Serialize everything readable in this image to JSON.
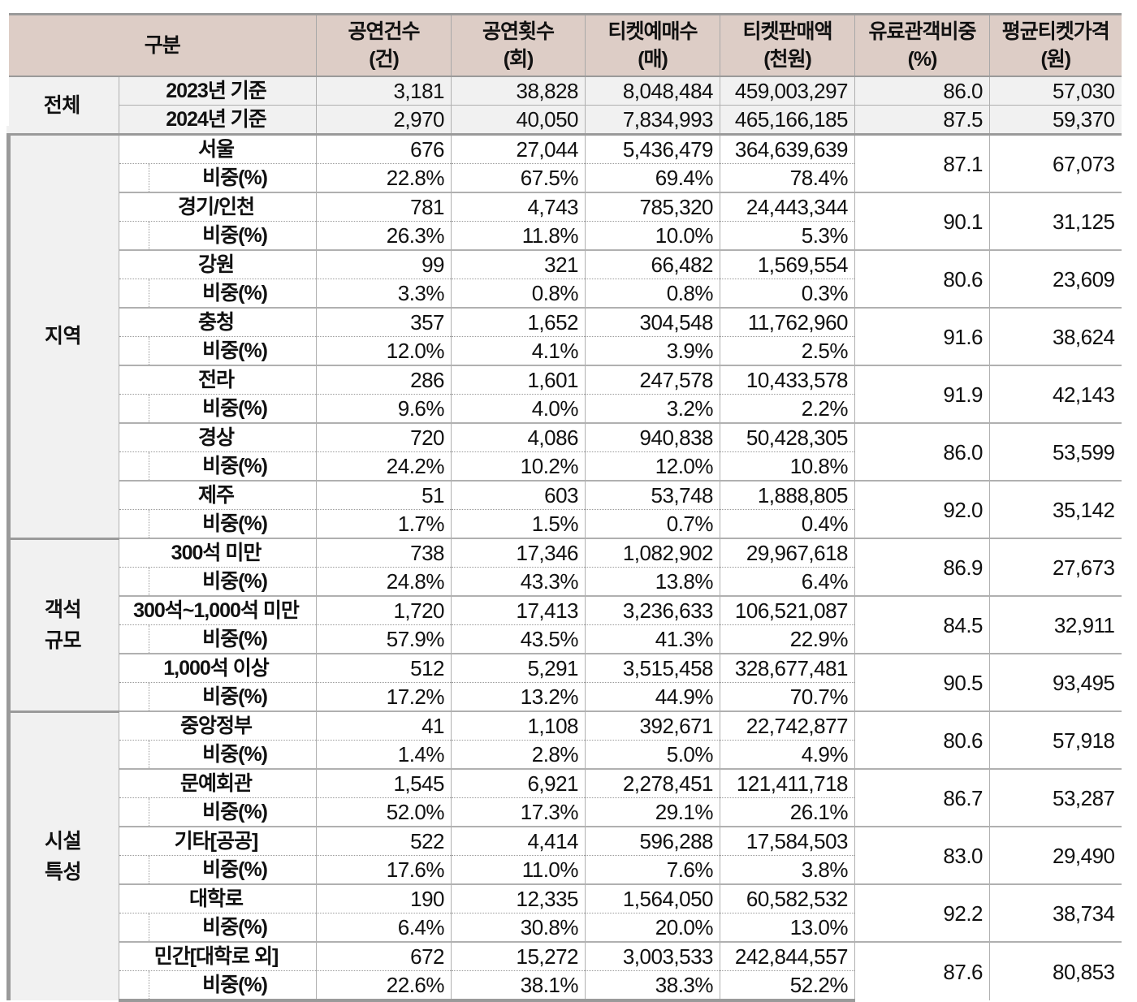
{
  "header": {
    "category": "구분",
    "columns": [
      {
        "title": "공연건수",
        "unit": "(건)"
      },
      {
        "title": "공연횟수",
        "unit": "(회)"
      },
      {
        "title": "티켓예매수",
        "unit": "(매)"
      },
      {
        "title": "티켓판매액",
        "unit": "(천원)"
      },
      {
        "title": "유료관객비중",
        "unit": "(%)"
      },
      {
        "title": "평균티켓가격",
        "unit": "(원)"
      }
    ]
  },
  "total": {
    "group": "전체",
    "rows": [
      {
        "label": "2023년 기준",
        "values": [
          "3,181",
          "38,828",
          "8,048,484",
          "459,003,297",
          "86.0",
          "57,030"
        ]
      },
      {
        "label": "2024년 기준",
        "values": [
          "2,970",
          "40,050",
          "7,834,993",
          "465,166,185",
          "87.5",
          "59,370"
        ]
      }
    ]
  },
  "share_label": "비중(%)",
  "groups": [
    {
      "name": "지역",
      "name_lines": [
        "지역"
      ],
      "items": [
        {
          "label": "서울",
          "values": [
            "676",
            "27,044",
            "5,436,479",
            "364,639,639"
          ],
          "shares": [
            "22.8%",
            "67.5%",
            "69.4%",
            "78.4%"
          ],
          "paid_ratio": "87.1",
          "avg_price": "67,073"
        },
        {
          "label": "경기/인천",
          "values": [
            "781",
            "4,743",
            "785,320",
            "24,443,344"
          ],
          "shares": [
            "26.3%",
            "11.8%",
            "10.0%",
            "5.3%"
          ],
          "paid_ratio": "90.1",
          "avg_price": "31,125"
        },
        {
          "label": "강원",
          "values": [
            "99",
            "321",
            "66,482",
            "1,569,554"
          ],
          "shares": [
            "3.3%",
            "0.8%",
            "0.8%",
            "0.3%"
          ],
          "paid_ratio": "80.6",
          "avg_price": "23,609"
        },
        {
          "label": "충청",
          "values": [
            "357",
            "1,652",
            "304,548",
            "11,762,960"
          ],
          "shares": [
            "12.0%",
            "4.1%",
            "3.9%",
            "2.5%"
          ],
          "paid_ratio": "91.6",
          "avg_price": "38,624"
        },
        {
          "label": "전라",
          "values": [
            "286",
            "1,601",
            "247,578",
            "10,433,578"
          ],
          "shares": [
            "9.6%",
            "4.0%",
            "3.2%",
            "2.2%"
          ],
          "paid_ratio": "91.9",
          "avg_price": "42,143"
        },
        {
          "label": "경상",
          "values": [
            "720",
            "4,086",
            "940,838",
            "50,428,305"
          ],
          "shares": [
            "24.2%",
            "10.2%",
            "12.0%",
            "10.8%"
          ],
          "paid_ratio": "86.0",
          "avg_price": "53,599"
        },
        {
          "label": "제주",
          "values": [
            "51",
            "603",
            "53,748",
            "1,888,805"
          ],
          "shares": [
            "1.7%",
            "1.5%",
            "0.7%",
            "0.4%"
          ],
          "paid_ratio": "92.0",
          "avg_price": "35,142"
        }
      ]
    },
    {
      "name": "객석 규모",
      "name_lines": [
        "객석",
        "규모"
      ],
      "items": [
        {
          "label": "300석 미만",
          "values": [
            "738",
            "17,346",
            "1,082,902",
            "29,967,618"
          ],
          "shares": [
            "24.8%",
            "43.3%",
            "13.8%",
            "6.4%"
          ],
          "paid_ratio": "86.9",
          "avg_price": "27,673"
        },
        {
          "label": "300석~1,000석 미만",
          "values": [
            "1,720",
            "17,413",
            "3,236,633",
            "106,521,087"
          ],
          "shares": [
            "57.9%",
            "43.5%",
            "41.3%",
            "22.9%"
          ],
          "paid_ratio": "84.5",
          "avg_price": "32,911"
        },
        {
          "label": "1,000석 이상",
          "values": [
            "512",
            "5,291",
            "3,515,458",
            "328,677,481"
          ],
          "shares": [
            "17.2%",
            "13.2%",
            "44.9%",
            "70.7%"
          ],
          "paid_ratio": "90.5",
          "avg_price": "93,495"
        }
      ]
    },
    {
      "name": "시설 특성",
      "name_lines": [
        "시설",
        "특성"
      ],
      "items": [
        {
          "label": "중앙정부",
          "values": [
            "41",
            "1,108",
            "392,671",
            "22,742,877"
          ],
          "shares": [
            "1.4%",
            "2.8%",
            "5.0%",
            "4.9%"
          ],
          "paid_ratio": "80.6",
          "avg_price": "57,918"
        },
        {
          "label": "문예회관",
          "values": [
            "1,545",
            "6,921",
            "2,278,451",
            "121,411,718"
          ],
          "shares": [
            "52.0%",
            "17.3%",
            "29.1%",
            "26.1%"
          ],
          "paid_ratio": "86.7",
          "avg_price": "53,287"
        },
        {
          "label": "기타[공공]",
          "values": [
            "522",
            "4,414",
            "596,288",
            "17,584,503"
          ],
          "shares": [
            "17.6%",
            "11.0%",
            "7.6%",
            "3.8%"
          ],
          "paid_ratio": "83.0",
          "avg_price": "29,490"
        },
        {
          "label": "대학로",
          "values": [
            "190",
            "12,335",
            "1,564,050",
            "60,582,532"
          ],
          "shares": [
            "6.4%",
            "30.8%",
            "20.0%",
            "13.0%"
          ],
          "paid_ratio": "92.2",
          "avg_price": "38,734"
        },
        {
          "label": "민간[대학로 외]",
          "values": [
            "672",
            "15,272",
            "3,003,533",
            "242,844,557"
          ],
          "shares": [
            "22.6%",
            "38.1%",
            "38.3%",
            "52.2%"
          ],
          "paid_ratio": "87.6",
          "avg_price": "80,853"
        }
      ]
    }
  ]
}
